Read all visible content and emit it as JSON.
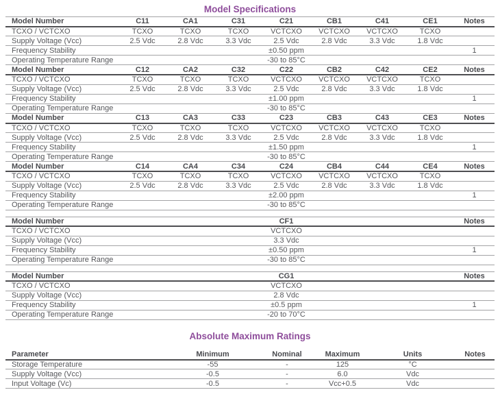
{
  "page": {
    "spec_title": "Model Specifications",
    "amr_title": "Absolute Maximum Ratings",
    "accent_color": "#8e4d9b",
    "text_color": "#55565a"
  },
  "spec_row_labels": {
    "model_number": "Model Number",
    "type": "TCXO / VCTCXO",
    "supply": "Supply Voltage (Vcc)",
    "stability": "Frequency Stability",
    "temp_range": "Operating Temperature Range",
    "notes": "Notes"
  },
  "spec_blocks": [
    {
      "models": [
        "C11",
        "CA1",
        "C31",
        "C21",
        "CB1",
        "C41",
        "CE1"
      ],
      "types": [
        "TCXO",
        "TCXO",
        "TCXO",
        "VCTCXO",
        "VCTCXO",
        "VCTCXO",
        "TCXO"
      ],
      "voltages": [
        "2.5 Vdc",
        "2.8 Vdc",
        "3.3 Vdc",
        "2.5 Vdc",
        "2.8 Vdc",
        "3.3 Vdc",
        "1.8 Vdc"
      ],
      "stability": "±0.50 ppm",
      "stability_note": "1",
      "temp_range": "-30 to 85°C"
    },
    {
      "models": [
        "C12",
        "CA2",
        "C32",
        "C22",
        "CB2",
        "C42",
        "CE2"
      ],
      "types": [
        "TCXO",
        "TCXO",
        "TCXO",
        "VCTCXO",
        "VCTCXO",
        "VCTCXO",
        "TCXO"
      ],
      "voltages": [
        "2.5 Vdc",
        "2.8 Vdc",
        "3.3 Vdc",
        "2.5 Vdc",
        "2.8 Vdc",
        "3.3 Vdc",
        "1.8 Vdc"
      ],
      "stability": "±1.00 ppm",
      "stability_note": "1",
      "temp_range": "-30 to 85°C"
    },
    {
      "models": [
        "C13",
        "CA3",
        "C33",
        "C23",
        "CB3",
        "C43",
        "CE3"
      ],
      "types": [
        "TCXO",
        "TCXO",
        "TCXO",
        "VCTCXO",
        "VCTCXO",
        "VCTCXO",
        "TCXO"
      ],
      "voltages": [
        "2.5 Vdc",
        "2.8 Vdc",
        "3.3 Vdc",
        "2.5 Vdc",
        "2.8 Vdc",
        "3.3 Vdc",
        "1.8 Vdc"
      ],
      "stability": "±1.50 ppm",
      "stability_note": "1",
      "temp_range": "-30 to 85°C"
    },
    {
      "models": [
        "C14",
        "CA4",
        "C34",
        "C24",
        "CB4",
        "C44",
        "CE4"
      ],
      "types": [
        "TCXO",
        "TCXO",
        "TCXO",
        "VCTCXO",
        "VCTCXO",
        "VCTCXO",
        "TCXO"
      ],
      "voltages": [
        "2.5 Vdc",
        "2.8 Vdc",
        "3.3 Vdc",
        "2.5 Vdc",
        "2.8 Vdc",
        "3.3 Vdc",
        "1.8 Vdc"
      ],
      "stability": "±2.00 ppm",
      "stability_note": "1",
      "temp_range": "-30 to 85°C"
    }
  ],
  "single_blocks": [
    {
      "model": "CF1",
      "type": "VCTCXO",
      "voltage": "3.3 Vdc",
      "stability": "±0.50 ppm",
      "stability_note": "1",
      "temp_range": "-30 to 85°C"
    },
    {
      "model": "CG1",
      "type": "VCTCXO",
      "voltage": "2.8 Vdc",
      "stability": "±0.5 ppm",
      "stability_note": "1",
      "temp_range": "-20 to 70°C"
    }
  ],
  "amr_table": {
    "headers": [
      "Parameter",
      "Minimum",
      "Nominal",
      "Maximum",
      "Units",
      "Notes"
    ],
    "rows": [
      {
        "parameter": "Storage Temperature",
        "minimum": "-55",
        "nominal": "-",
        "maximum": "125",
        "units": "°C",
        "notes": ""
      },
      {
        "parameter": "Supply Voltage (Vcc)",
        "minimum": "-0.5",
        "nominal": "-",
        "maximum": "6.0",
        "units": "Vdc",
        "notes": ""
      },
      {
        "parameter": "Input Voltage (Vc)",
        "minimum": "-0.5",
        "nominal": "-",
        "maximum": "Vcc+0.5",
        "units": "Vdc",
        "notes": ""
      }
    ]
  }
}
